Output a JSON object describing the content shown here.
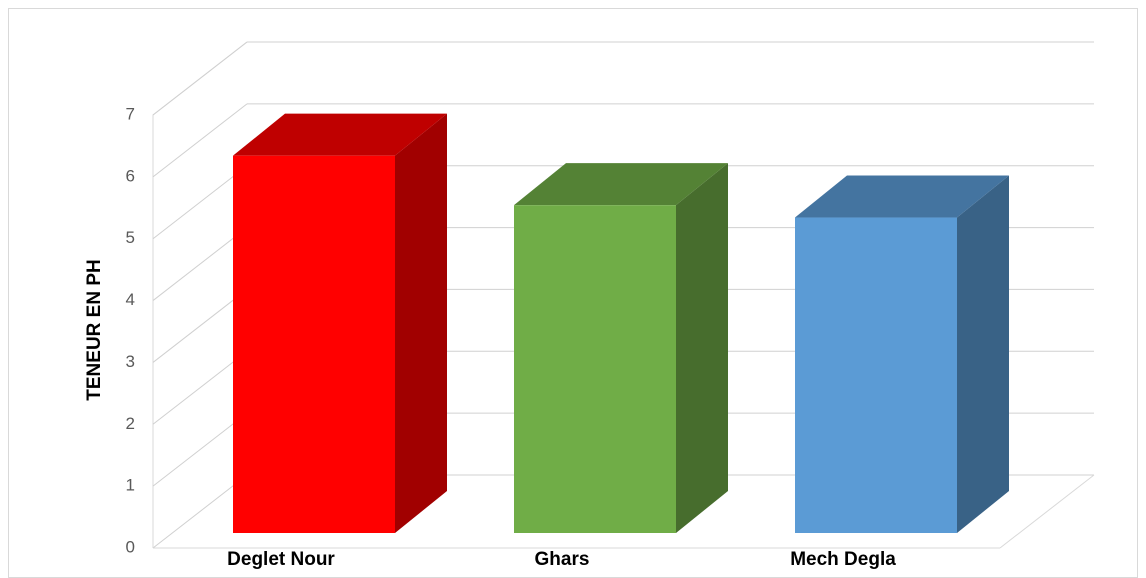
{
  "chart_data": {
    "type": "bar3d",
    "y_label": "TENEUR EN PH",
    "categories": [
      "Deglet Nour",
      "Ghars",
      "Mech Degla"
    ],
    "values": [
      6.1,
      5.3,
      5.1
    ],
    "colors": [
      "#ff0000",
      "#70ad47",
      "#5b9bd5"
    ],
    "ylim": [
      0,
      7
    ],
    "yticks": [
      0,
      1,
      2,
      3,
      4,
      5,
      6,
      7
    ],
    "grid": true
  }
}
